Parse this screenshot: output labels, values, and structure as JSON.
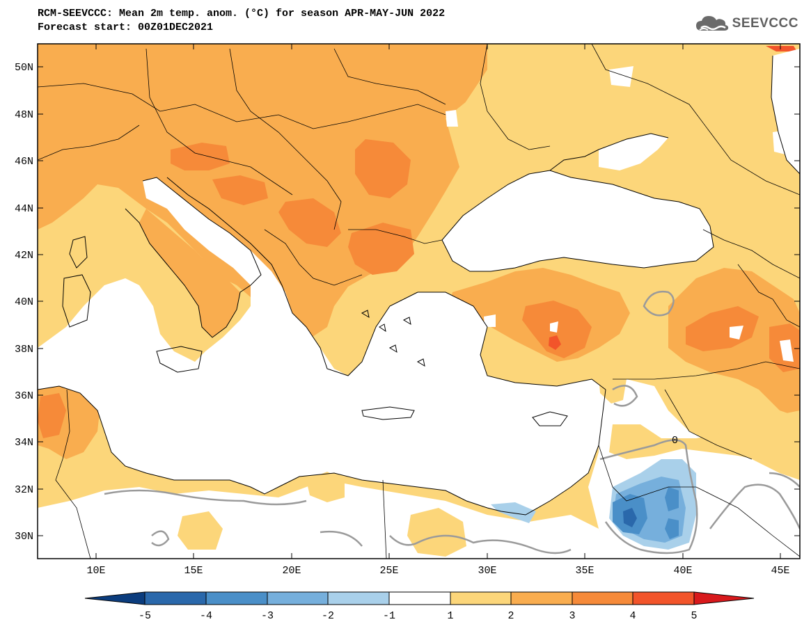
{
  "title": {
    "line1": "RCM-SEEVCCC: Mean 2m temp. anom. (°C) for season APR-MAY-JUN 2022",
    "line2": "Forecast start: 00Z01DEC2021"
  },
  "logo": {
    "text": "SEEVCCC",
    "icon": "cloud-icon"
  },
  "map": {
    "lon_range": [
      7,
      46
    ],
    "lat_range": [
      29,
      51
    ],
    "lat_ticks": [
      "50N",
      "48N",
      "46N",
      "44N",
      "42N",
      "40N",
      "38N",
      "36N",
      "34N",
      "32N",
      "30N"
    ],
    "lon_ticks": [
      "10E",
      "15E",
      "20E",
      "25E",
      "30E",
      "35E",
      "40E",
      "45E"
    ],
    "contour_label": "0"
  },
  "colorbar": {
    "ticks": [
      "-5",
      "-4",
      "-3",
      "-2",
      "-1",
      "1",
      "2",
      "3",
      "4",
      "5"
    ],
    "colors": [
      "#0b3c7d",
      "#2a68ab",
      "#4a8fc8",
      "#76afdc",
      "#a9d0ea",
      "#ffffff",
      "#fcd67a",
      "#f9ad4f",
      "#f68a39",
      "#f2542a",
      "#d8191c"
    ]
  },
  "palette": {
    "anom_1_2": "#fcd67a",
    "anom_2_3": "#f9ad4f",
    "anom_3_4": "#f68a39",
    "anom_4_5": "#f2542a",
    "neg_1_2": "#a9d0ea",
    "neg_2_3": "#76afdc",
    "neg_3_4": "#4a8fc8",
    "neg_4_5": "#2a68ab",
    "zero_contour": "#9a9a9a",
    "coast": "#000000"
  }
}
